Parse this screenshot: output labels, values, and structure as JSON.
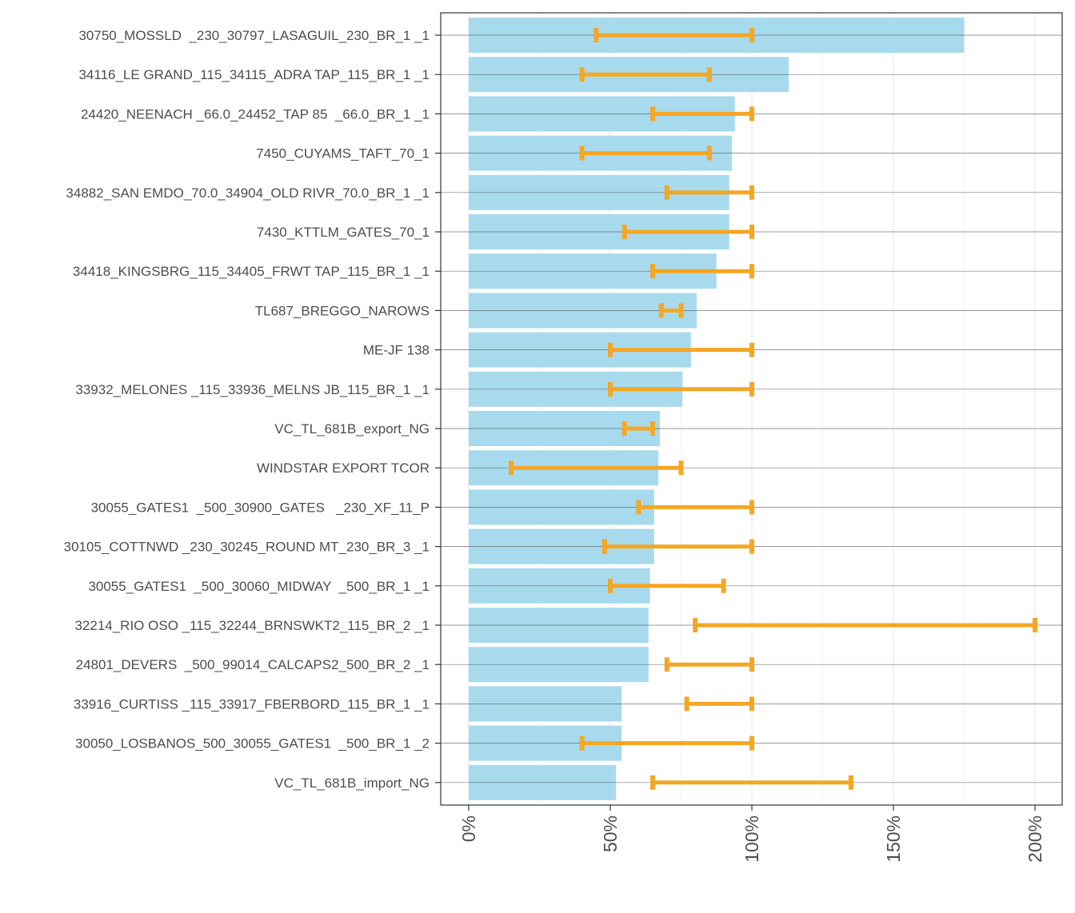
{
  "chart_data": {
    "type": "bar",
    "orientation": "horizontal",
    "title": "",
    "xlabel": "",
    "ylabel": "",
    "xlim": [
      0,
      200
    ],
    "x_tick_values": [
      0,
      50,
      100,
      150,
      200
    ],
    "x_tick_labels": [
      "0%",
      "50%",
      "100%",
      "150%",
      "200%"
    ],
    "grid": true,
    "bar_color": "#a8daed",
    "errorbar_color": "#f5a623",
    "categories": [
      "30750_MOSSLD  _230_30797_LASAGUIL_230_BR_1 _1",
      "34116_LE GRAND_115_34115_ADRA TAP_115_BR_1 _1",
      "24420_NEENACH _66.0_24452_TAP 85  _66.0_BR_1 _1",
      "7450_CUYAMS_TAFT_70_1",
      "34882_SAN EMDO_70.0_34904_OLD RIVR_70.0_BR_1 _1",
      "7430_KTTLM_GATES_70_1",
      "34418_KINGSBRG_115_34405_FRWT TAP_115_BR_1 _1",
      "TL687_BREGGO_NAROWS",
      "ME-JF 138",
      "33932_MELONES _115_33936_MELNS JB_115_BR_1 _1",
      "VC_TL_681B_export_NG",
      "WINDSTAR EXPORT TCOR",
      "30055_GATES1  _500_30900_GATES   _230_XF_11_P",
      "30105_COTTNWD _230_30245_ROUND MT_230_BR_3 _1",
      "30055_GATES1  _500_30060_MIDWAY  _500_BR_1 _1",
      "32214_RIO OSO _115_32244_BRNSWKT2_115_BR_2 _1",
      "24801_DEVERS  _500_99014_CALCAPS2_500_BR_2 _1",
      "33916_CURTISS _115_33917_FBERBORD_115_BR_1 _1",
      "30050_LOSBANOS_500_30055_GATES1  _500_BR_1 _2",
      "VC_TL_681B_import_NG"
    ],
    "values": [
      175,
      113,
      94,
      93,
      92,
      92,
      87.5,
      80.5,
      78.5,
      75.5,
      67.5,
      67,
      65.5,
      65.5,
      64,
      63.5,
      63.5,
      54,
      54,
      52
    ],
    "error_low": [
      45,
      40,
      65,
      40,
      70,
      55,
      65,
      68,
      50,
      50,
      55,
      15,
      60,
      48,
      50,
      80,
      70,
      77,
      40,
      65
    ],
    "error_high": [
      100,
      85,
      100,
      85,
      100,
      100,
      100,
      75,
      100,
      100,
      65,
      75,
      100,
      100,
      90,
      200,
      100,
      100,
      100,
      135
    ]
  }
}
